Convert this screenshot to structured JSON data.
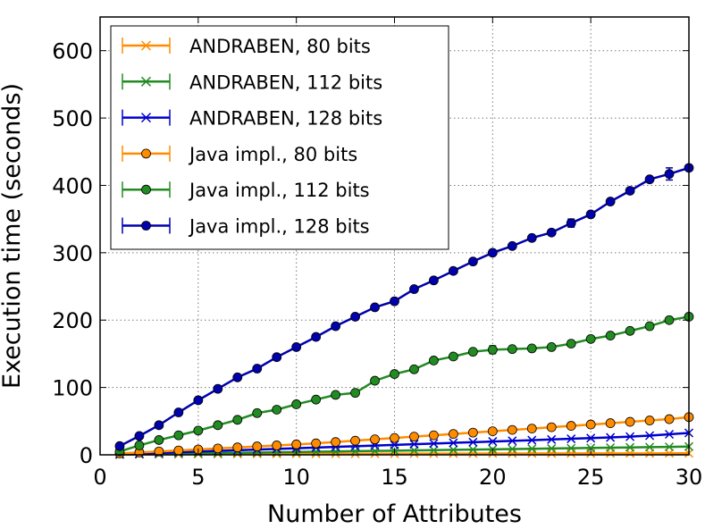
{
  "chart_data": {
    "type": "line",
    "title": "",
    "xlabel": "Number of Attributes",
    "ylabel": "Execution time (seconds)",
    "xlim": [
      0,
      30
    ],
    "ylim": [
      0,
      650
    ],
    "xticks": [
      0,
      5,
      10,
      15,
      20,
      25,
      30
    ],
    "yticks": [
      0,
      100,
      200,
      300,
      400,
      500,
      600
    ],
    "grid": true,
    "legend_position": "top-left",
    "x": [
      1,
      2,
      3,
      4,
      5,
      6,
      7,
      8,
      9,
      10,
      11,
      12,
      13,
      14,
      15,
      16,
      17,
      18,
      19,
      20,
      21,
      22,
      23,
      24,
      25,
      26,
      27,
      28,
      29,
      30
    ],
    "series": [
      {
        "name": "ANDRABEN, 80 bits",
        "color": "#ff8c00",
        "marker": "x",
        "values": [
          0.3,
          0.5,
          0.7,
          0.8,
          1,
          1.1,
          1.2,
          1.3,
          1.4,
          1.5,
          1.5,
          1.6,
          1.6,
          1.7,
          1.7,
          1.8,
          1.8,
          1.9,
          1.9,
          2,
          2,
          2,
          2.1,
          2.1,
          2.1,
          2.2,
          2.2,
          2.2,
          2.3,
          2.3
        ],
        "errors": [
          0,
          0,
          0,
          0,
          0,
          0,
          0,
          0,
          0,
          0,
          0,
          0,
          0,
          0,
          0,
          0,
          0,
          0,
          0,
          0,
          0,
          0,
          0,
          0,
          0,
          0,
          0,
          0,
          0,
          0
        ]
      },
      {
        "name": "ANDRABEN, 112 bits",
        "color": "#228b22",
        "marker": "x",
        "values": [
          0.6,
          0.9,
          1.3,
          1.7,
          2.1,
          2.5,
          3,
          3.4,
          3.8,
          4.2,
          4.6,
          5,
          5.4,
          5.8,
          6.2,
          6.6,
          7,
          7.4,
          7.8,
          8.2,
          8.6,
          9,
          9.4,
          9.8,
          10.2,
          10.6,
          11,
          11.4,
          11.8,
          12.3
        ],
        "errors": [
          0,
          0,
          0,
          0,
          0,
          0,
          0,
          0,
          0,
          0,
          0,
          0,
          0,
          0,
          0,
          0,
          0,
          0,
          0,
          0,
          0,
          0,
          0,
          0,
          0,
          0,
          0,
          0,
          0,
          0
        ]
      },
      {
        "name": "ANDRABEN, 128 bits",
        "color": "#0000cd",
        "marker": "x",
        "values": [
          0.9,
          1.8,
          2.8,
          3.8,
          4.8,
          5.8,
          6.8,
          7.8,
          8.8,
          9.8,
          10.8,
          11.8,
          12.8,
          13.8,
          14.8,
          15.8,
          16.8,
          17.8,
          18.8,
          19.8,
          20.8,
          21.8,
          22.8,
          23.8,
          24.8,
          25.8,
          27,
          28.5,
          30.5,
          32.5
        ],
        "errors": [
          0,
          0,
          0,
          0,
          0,
          0,
          0,
          0,
          0,
          0,
          0,
          0,
          0,
          0,
          0,
          0,
          0,
          0,
          0,
          0,
          0,
          0,
          0,
          0,
          0,
          0,
          0,
          0,
          0,
          0
        ]
      },
      {
        "name": "Java impl., 80 bits",
        "color": "#ff8c00",
        "marker": "o",
        "values": [
          2,
          3.5,
          5,
          6.5,
          8,
          9.5,
          11,
          12.5,
          14,
          15.5,
          17,
          19,
          21,
          23,
          25,
          27,
          29,
          31,
          33,
          35,
          37,
          39,
          41,
          43,
          45,
          47,
          49,
          51,
          53,
          56
        ],
        "errors": [
          0,
          0,
          0,
          0,
          0,
          0,
          0,
          0,
          0,
          0,
          0,
          0,
          0,
          0,
          0,
          0,
          0,
          0,
          0,
          0,
          0,
          0,
          0,
          0,
          0,
          0,
          0,
          0,
          0,
          0
        ]
      },
      {
        "name": "Java impl., 112 bits",
        "color": "#228b22",
        "marker": "o",
        "values": [
          5,
          14,
          22,
          29,
          36,
          44,
          52,
          62,
          67,
          75,
          82,
          89,
          92,
          110,
          120,
          127,
          140,
          146,
          153,
          156,
          157,
          158,
          160,
          165,
          172,
          177,
          184,
          191,
          200,
          205
        ],
        "errors": [
          0,
          0,
          0,
          0,
          0,
          0,
          0,
          0,
          0,
          0,
          0,
          0,
          0,
          0,
          0,
          0,
          0,
          0,
          0,
          6,
          0,
          0,
          0,
          0,
          0,
          0,
          0,
          0,
          0,
          0
        ]
      },
      {
        "name": "Java impl., 128 bits",
        "color": "#0000ad",
        "marker": "o",
        "values": [
          13,
          28,
          44,
          63,
          81,
          98,
          115,
          128,
          145,
          160,
          175,
          191,
          205,
          219,
          228,
          246,
          259,
          273,
          287,
          300,
          310,
          322,
          330,
          344,
          357,
          376,
          392,
          409,
          417,
          426
        ],
        "errors": [
          0,
          0,
          0,
          0,
          0,
          0,
          0,
          0,
          0,
          0,
          0,
          0,
          0,
          0,
          0,
          0,
          0,
          0,
          0,
          0,
          0,
          0,
          0,
          6,
          0,
          0,
          0,
          0,
          9,
          0
        ]
      }
    ]
  }
}
